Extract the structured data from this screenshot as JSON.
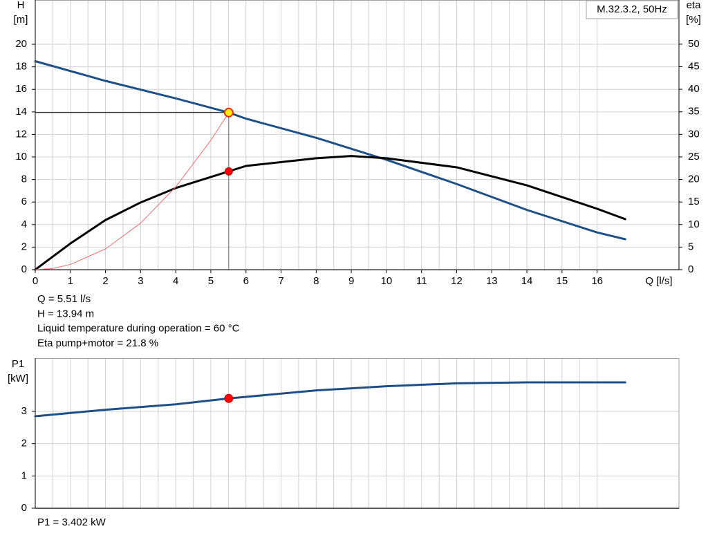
{
  "chart_data": [
    {
      "type": "line",
      "title": "M.32.3.2, 50Hz",
      "ylabel": "H",
      "yunit": "[m]",
      "y2label": "eta",
      "y2unit": "[%]",
      "xlabel": "Q [l/s]",
      "xlim": [
        0,
        18.33
      ],
      "xticks": [
        0,
        1,
        2,
        3,
        4,
        5,
        6,
        7,
        8,
        9,
        10,
        11,
        12,
        13,
        14,
        15,
        16
      ],
      "ylim": [
        0,
        23.93
      ],
      "yticks": [
        0,
        2,
        4,
        6,
        8,
        10,
        12,
        14,
        16,
        18,
        20
      ],
      "y2lim": [
        0,
        59.8
      ],
      "y2ticks": [
        0,
        5,
        10,
        15,
        20,
        25,
        30,
        35,
        40,
        45,
        50
      ],
      "grid": true,
      "series": [
        {
          "name": "H",
          "color": "#1d4f88",
          "width": 3,
          "x": [
            0,
            2,
            4,
            5.51,
            6,
            8,
            10,
            12,
            14,
            16,
            16.8
          ],
          "values": [
            18.5,
            16.75,
            15.2,
            13.94,
            13.4,
            11.7,
            9.75,
            7.6,
            5.3,
            3.3,
            2.7
          ]
        },
        {
          "name": "eta",
          "axis": "y2",
          "color": "#000000",
          "width": 3,
          "x": [
            0,
            1,
            2,
            3,
            4,
            5.51,
            6,
            8,
            9,
            10,
            12,
            14,
            16,
            16.8
          ],
          "values": [
            0,
            5.8,
            11,
            14.9,
            18.1,
            21.8,
            23,
            24.7,
            25.2,
            24.7,
            22.7,
            18.7,
            13.5,
            11.2
          ]
        },
        {
          "name": "system",
          "color": "#f07070",
          "width": 1,
          "x": [
            0,
            0.5,
            1,
            2,
            3,
            4,
            5,
            5.51
          ],
          "values": [
            0,
            0.11,
            0.46,
            1.84,
            4.13,
            7.34,
            11.48,
            13.94
          ]
        }
      ],
      "operating_point": {
        "x": 5.51,
        "y": 13.94,
        "y2": 21.8
      },
      "annotations": [
        "Q = 5.51 l/s",
        "H = 13.94 m",
        "Liquid temperature during operation = 60 °C",
        "Eta pump+motor = 21.8 %"
      ]
    },
    {
      "type": "line",
      "ylabel": "P1",
      "yunit": "[kW]",
      "xlim": [
        0,
        18.33
      ],
      "ylim": [
        0,
        4.65
      ],
      "yticks": [
        0,
        1,
        2,
        3
      ],
      "grid": true,
      "series": [
        {
          "name": "P1",
          "color": "#1d4f88",
          "width": 3,
          "x": [
            0,
            2,
            4,
            5.51,
            8,
            10,
            12,
            14,
            16,
            16.8
          ],
          "values": [
            2.85,
            3.05,
            3.22,
            3.402,
            3.65,
            3.78,
            3.87,
            3.9,
            3.9,
            3.9
          ]
        }
      ],
      "operating_point": {
        "x": 5.51,
        "y": 3.402
      },
      "annotations": [
        "P1 = 3.402 kW"
      ]
    }
  ]
}
